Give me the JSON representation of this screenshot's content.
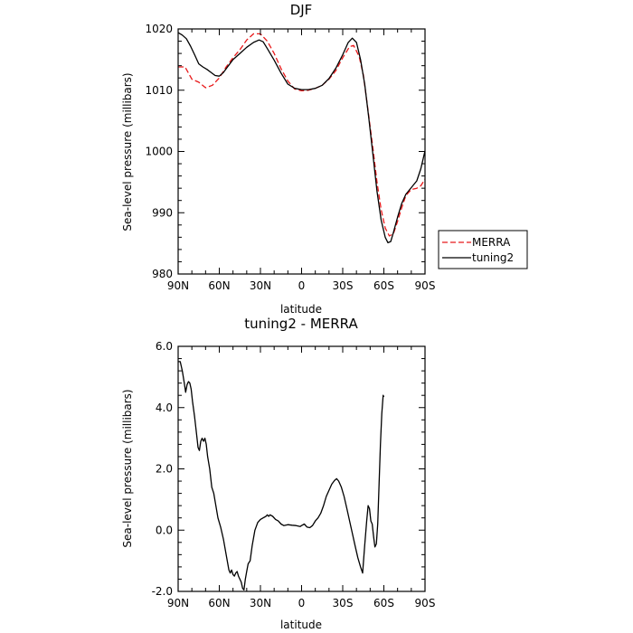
{
  "chart_data": [
    {
      "type": "line",
      "title": "DJF",
      "xlabel": "latitude",
      "ylabel": "Sea-level pressure (millibars)",
      "xlim": [
        90,
        -90
      ],
      "ylim": [
        980,
        1020
      ],
      "x_ticks": [
        90,
        60,
        30,
        0,
        -30,
        -60,
        -90
      ],
      "x_tick_labels": [
        "90N",
        "60N",
        "30N",
        "0",
        "30S",
        "60S",
        "90S"
      ],
      "y_ticks": [
        980,
        990,
        1000,
        1010,
        1020
      ],
      "y_tick_labels": [
        "980",
        "990",
        "1000",
        "1010",
        "1020"
      ],
      "legend": {
        "placement": "right",
        "entries": [
          "MERRA",
          "tuning2"
        ]
      },
      "grid": false,
      "series": [
        {
          "name": "MERRA",
          "color": "#e8191a",
          "dash": true,
          "points": [
            [
              90,
              1013.8
            ],
            [
              85,
              1013.8
            ],
            [
              80,
              1011.8
            ],
            [
              75,
              1011.3
            ],
            [
              70,
              1010.4
            ],
            [
              65,
              1010.8
            ],
            [
              60,
              1012.0
            ],
            [
              55,
              1013.8
            ],
            [
              50,
              1015.3
            ],
            [
              45,
              1016.6
            ],
            [
              40,
              1018.2
            ],
            [
              35,
              1019.2
            ],
            [
              30,
              1019.2
            ],
            [
              25,
              1018.0
            ],
            [
              20,
              1016.0
            ],
            [
              15,
              1013.5
            ],
            [
              10,
              1011.5
            ],
            [
              5,
              1010.2
            ],
            [
              0,
              1009.9
            ],
            [
              -5,
              1010.0
            ],
            [
              -10,
              1010.3
            ],
            [
              -15,
              1010.8
            ],
            [
              -20,
              1011.8
            ],
            [
              -25,
              1013.2
            ],
            [
              -30,
              1015.3
            ],
            [
              -35,
              1017.1
            ],
            [
              -38,
              1017.3
            ],
            [
              -42,
              1015.5
            ],
            [
              -45,
              1012.5
            ],
            [
              -48,
              1007.5
            ],
            [
              -52,
              1000.5
            ],
            [
              -55,
              995.0
            ],
            [
              -58,
              990.5
            ],
            [
              -61,
              987.5
            ],
            [
              -64,
              986.2
            ],
            [
              -67,
              986.6
            ],
            [
              -70,
              988.6
            ],
            [
              -73,
              990.8
            ],
            [
              -76,
              992.8
            ],
            [
              -80,
              993.8
            ],
            [
              -84,
              994.0
            ],
            [
              -87,
              994.4
            ],
            [
              -90,
              995.5
            ]
          ]
        },
        {
          "name": "tuning2",
          "color": "#000000",
          "dash": false,
          "points": [
            [
              90,
              1019.4
            ],
            [
              87,
              1019.0
            ],
            [
              84,
              1018.4
            ],
            [
              81,
              1017.2
            ],
            [
              78,
              1015.8
            ],
            [
              75,
              1014.3
            ],
            [
              72,
              1013.8
            ],
            [
              69,
              1013.4
            ],
            [
              66,
              1012.9
            ],
            [
              63,
              1012.4
            ],
            [
              60,
              1012.3
            ],
            [
              57,
              1012.9
            ],
            [
              54,
              1013.8
            ],
            [
              50,
              1015.0
            ],
            [
              45,
              1016.0
            ],
            [
              40,
              1017.0
            ],
            [
              35,
              1017.8
            ],
            [
              31,
              1018.2
            ],
            [
              28,
              1017.9
            ],
            [
              25,
              1016.8
            ],
            [
              20,
              1014.9
            ],
            [
              15,
              1012.8
            ],
            [
              10,
              1011.0
            ],
            [
              5,
              1010.3
            ],
            [
              0,
              1010.1
            ],
            [
              -5,
              1010.1
            ],
            [
              -10,
              1010.3
            ],
            [
              -15,
              1010.8
            ],
            [
              -20,
              1011.9
            ],
            [
              -25,
              1013.6
            ],
            [
              -30,
              1015.8
            ],
            [
              -34,
              1017.8
            ],
            [
              -37,
              1018.5
            ],
            [
              -40,
              1017.8
            ],
            [
              -43,
              1015.0
            ],
            [
              -46,
              1011.0
            ],
            [
              -49,
              1005.5
            ],
            [
              -52,
              999.5
            ],
            [
              -55,
              993.5
            ],
            [
              -58,
              988.8
            ],
            [
              -61,
              986.0
            ],
            [
              -63,
              985.1
            ],
            [
              -65,
              985.3
            ],
            [
              -67,
              986.8
            ],
            [
              -70,
              989.3
            ],
            [
              -73,
              991.5
            ],
            [
              -76,
              993.0
            ],
            [
              -80,
              994.1
            ],
            [
              -84,
              995.2
            ],
            [
              -87,
              997.2
            ],
            [
              -90,
              1000.1
            ]
          ]
        }
      ]
    },
    {
      "type": "line",
      "title": "tuning2 - MERRA",
      "xlabel": "latitude",
      "ylabel": "Sea-level pressure (millibars)",
      "xlim": [
        90,
        -90
      ],
      "ylim": [
        -2,
        6
      ],
      "x_ticks": [
        90,
        60,
        30,
        0,
        -30,
        -60,
        -90
      ],
      "x_tick_labels": [
        "90N",
        "60N",
        "30N",
        "0",
        "30S",
        "60S",
        "90S"
      ],
      "y_ticks": [
        -2,
        0,
        2,
        4,
        6
      ],
      "y_tick_labels": [
        "-2.0",
        "0.0",
        "2.0",
        "4.0",
        "6.0"
      ],
      "grid": false,
      "series": [
        {
          "color": "#000000",
          "dash": false,
          "points": [
            [
              90,
              5.5
            ],
            [
              88.5,
              5.5
            ],
            [
              87,
              5.2
            ],
            [
              85.5,
              4.8
            ],
            [
              84.5,
              4.5
            ],
            [
              83.5,
              4.75
            ],
            [
              82.5,
              4.85
            ],
            [
              81.5,
              4.8
            ],
            [
              80.5,
              4.6
            ],
            [
              79.5,
              4.2
            ],
            [
              78,
              3.7
            ],
            [
              76.5,
              3.1
            ],
            [
              75.5,
              2.7
            ],
            [
              74.5,
              2.6
            ],
            [
              73.5,
              2.9
            ],
            [
              72.5,
              3.0
            ],
            [
              71.5,
              2.9
            ],
            [
              70.5,
              3.0
            ],
            [
              69.5,
              2.8
            ],
            [
              68.5,
              2.4
            ],
            [
              67,
              2.0
            ],
            [
              65.5,
              1.4
            ],
            [
              64,
              1.2
            ],
            [
              62.5,
              0.8
            ],
            [
              61,
              0.4
            ],
            [
              59,
              0.1
            ],
            [
              57,
              -0.3
            ],
            [
              55,
              -0.8
            ],
            [
              53,
              -1.3
            ],
            [
              52,
              -1.4
            ],
            [
              51,
              -1.3
            ],
            [
              50,
              -1.45
            ],
            [
              49,
              -1.5
            ],
            [
              48,
              -1.4
            ],
            [
              47,
              -1.35
            ],
            [
              46,
              -1.5
            ],
            [
              45,
              -1.6
            ],
            [
              44,
              -1.7
            ],
            [
              43,
              -1.9
            ],
            [
              42,
              -1.95
            ],
            [
              41,
              -1.6
            ],
            [
              40,
              -1.35
            ],
            [
              39,
              -1.1
            ],
            [
              37.5,
              -1.0
            ],
            [
              36,
              -0.5
            ],
            [
              34,
              0.0
            ],
            [
              32,
              0.25
            ],
            [
              30,
              0.35
            ],
            [
              28,
              0.4
            ],
            [
              26,
              0.45
            ],
            [
              25,
              0.5
            ],
            [
              24,
              0.45
            ],
            [
              23,
              0.5
            ],
            [
              21,
              0.45
            ],
            [
              19,
              0.35
            ],
            [
              17,
              0.3
            ],
            [
              15,
              0.2
            ],
            [
              13,
              0.15
            ],
            [
              10,
              0.18
            ],
            [
              7,
              0.16
            ],
            [
              4,
              0.15
            ],
            [
              1,
              0.12
            ],
            [
              0,
              0.15
            ],
            [
              -2,
              0.2
            ],
            [
              -4,
              0.1
            ],
            [
              -6,
              0.08
            ],
            [
              -8,
              0.15
            ],
            [
              -10,
              0.3
            ],
            [
              -12,
              0.4
            ],
            [
              -14,
              0.55
            ],
            [
              -16,
              0.8
            ],
            [
              -18,
              1.1
            ],
            [
              -20,
              1.3
            ],
            [
              -22,
              1.5
            ],
            [
              -24,
              1.62
            ],
            [
              -25.5,
              1.68
            ],
            [
              -27,
              1.6
            ],
            [
              -29,
              1.4
            ],
            [
              -31,
              1.1
            ],
            [
              -33,
              0.7
            ],
            [
              -35,
              0.3
            ],
            [
              -37,
              -0.1
            ],
            [
              -39,
              -0.5
            ],
            [
              -41,
              -0.9
            ],
            [
              -43,
              -1.2
            ],
            [
              -44.5,
              -1.4
            ],
            [
              -46,
              -0.5
            ],
            [
              -47.5,
              0.3
            ],
            [
              -48.5,
              0.8
            ],
            [
              -49.5,
              0.7
            ],
            [
              -50.5,
              0.3
            ],
            [
              -51.5,
              0.2
            ],
            [
              -52.5,
              -0.2
            ],
            [
              -53.5,
              -0.55
            ],
            [
              -54.5,
              -0.45
            ],
            [
              -55.5,
              0.2
            ],
            [
              -56.5,
              1.5
            ],
            [
              -57.5,
              2.8
            ],
            [
              -58.5,
              3.8
            ],
            [
              -59.5,
              4.4
            ],
            [
              -60,
              4.35
            ]
          ]
        }
      ]
    }
  ]
}
